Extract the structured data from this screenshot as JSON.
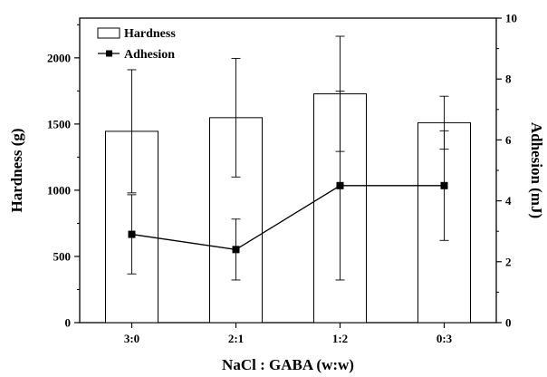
{
  "chart_data": {
    "type": "bar",
    "xlabel": "NaCl : GABA (w:w)",
    "ylabel": "Hardness (g)",
    "y2label": "Adhesion (mJ)",
    "categories": [
      "3:0",
      "2:1",
      "1:2",
      "0:3"
    ],
    "ylim": [
      0,
      2300
    ],
    "y2lim": [
      0,
      10
    ],
    "yticks": [
      "0",
      "500",
      "1000",
      "1500",
      "2000"
    ],
    "y2ticks": [
      "0",
      "2",
      "4",
      "6",
      "8",
      "10"
    ],
    "grid": false,
    "legend_position": "top-left",
    "series": [
      {
        "name": "Hardness",
        "kind": "bar",
        "axis": "left",
        "values": [
          1445,
          1548,
          1728,
          1510
        ],
        "error": [
          465,
          448,
          435,
          200
        ],
        "color": "#ffffff",
        "edge": "#000000"
      },
      {
        "name": "Adhesion",
        "kind": "line",
        "axis": "right",
        "marker": "square",
        "values": [
          2.9,
          2.4,
          4.5,
          4.5
        ],
        "error": [
          1.3,
          1.0,
          3.1,
          1.8
        ],
        "color": "#000000"
      }
    ]
  }
}
